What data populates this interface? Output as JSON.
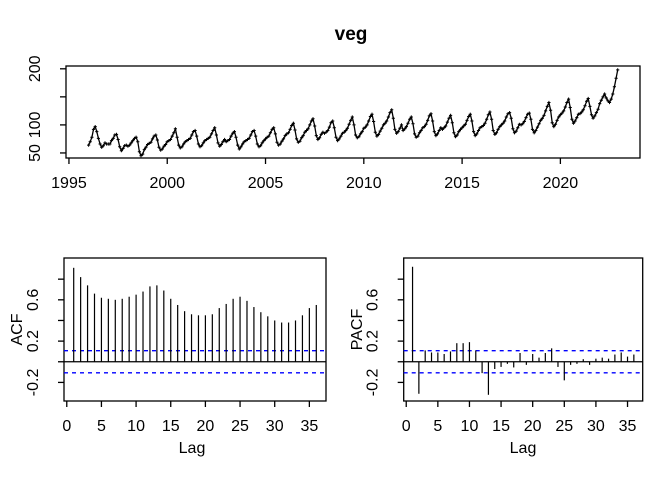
{
  "window": {
    "background": "#ffffff",
    "foreground": "#000000"
  },
  "chart_data": [
    {
      "type": "line",
      "title": "veg",
      "xlabel": "",
      "ylabel": "",
      "x_start_year": 1996,
      "frequency_per_year": 12,
      "xlim": [
        1994.85,
        2024.05
      ],
      "ylim": [
        41,
        205
      ],
      "grid": false,
      "line_color": "#000000",
      "marker": "plus",
      "xticks": [
        {
          "v": 1995,
          "label": "1995"
        },
        {
          "v": 2000,
          "label": "2000"
        },
        {
          "v": 2005,
          "label": "2005"
        },
        {
          "v": 2010,
          "label": "2010"
        },
        {
          "v": 2015,
          "label": "2015"
        },
        {
          "v": 2020,
          "label": "2020"
        }
      ],
      "yticks": [
        {
          "v": 50,
          "label": "50"
        },
        {
          "v": 100,
          "label": "100"
        },
        {
          "v": 150,
          "label": ""
        },
        {
          "v": 200,
          "label": "200"
        }
      ],
      "values": [
        64,
        70,
        78,
        92,
        97,
        88,
        76,
        66,
        60,
        63,
        68,
        66,
        66,
        66,
        72,
        76,
        82,
        83,
        74,
        61,
        54,
        58,
        63,
        64,
        62,
        64,
        68,
        72,
        76,
        78,
        70,
        52,
        45,
        48,
        56,
        60,
        65,
        67,
        69,
        75,
        80,
        82,
        73,
        60,
        55,
        57,
        62,
        65,
        70,
        72,
        74,
        80,
        86,
        93,
        78,
        64,
        59,
        61,
        66,
        70,
        72,
        74,
        76,
        82,
        88,
        90,
        80,
        66,
        61,
        63,
        68,
        72,
        74,
        76,
        78,
        84,
        90,
        95,
        82,
        68,
        62,
        65,
        70,
        74,
        70,
        72,
        74,
        80,
        85,
        88,
        78,
        64,
        57,
        61,
        66,
        70,
        72,
        74,
        76,
        82,
        88,
        90,
        80,
        66,
        61,
        63,
        68,
        72,
        75,
        78,
        80,
        86,
        92,
        95,
        84,
        69,
        64,
        66,
        71,
        75,
        81,
        84,
        86,
        92,
        99,
        103,
        91,
        75,
        69,
        71,
        77,
        81,
        87,
        90,
        93,
        100,
        107,
        111,
        98,
        81,
        74,
        77,
        83,
        87,
        85,
        87,
        90,
        96,
        104,
        107,
        95,
        78,
        72,
        75,
        80,
        85,
        87,
        90,
        94,
        101,
        108,
        114,
        100,
        82,
        77,
        79,
        84,
        88,
        94,
        96,
        100,
        107,
        115,
        119,
        106,
        87,
        80,
        83,
        89,
        94,
        100,
        103,
        107,
        114,
        122,
        127,
        112,
        92,
        85,
        88,
        94,
        100,
        90,
        93,
        97,
        103,
        110,
        114,
        102,
        84,
        78,
        80,
        86,
        90,
        95,
        97,
        101,
        108,
        116,
        120,
        107,
        88,
        81,
        84,
        90,
        95,
        92,
        95,
        98,
        105,
        112,
        117,
        104,
        86,
        79,
        82,
        88,
        92,
        95,
        98,
        101,
        108,
        115,
        119,
        107,
        88,
        81,
        84,
        90,
        95,
        97,
        99,
        103,
        110,
        118,
        123,
        110,
        90,
        83,
        86,
        92,
        97,
        100,
        103,
        107,
        114,
        120,
        122,
        112,
        93,
        86,
        89,
        95,
        101,
        100,
        102,
        106,
        113,
        119,
        121,
        110,
        92,
        86,
        90,
        96,
        102,
        108,
        112,
        117,
        125,
        133,
        140,
        126,
        104,
        97,
        101,
        108,
        114,
        118,
        121,
        125,
        132,
        140,
        146,
        131,
        110,
        103,
        107,
        113,
        119,
        120,
        123,
        127,
        134,
        142,
        147,
        133,
        118,
        112,
        116,
        122,
        128,
        138,
        144,
        150,
        155,
        148,
        143,
        140,
        146,
        155,
        168,
        183,
        198
      ]
    },
    {
      "type": "bar",
      "title": "",
      "xlabel": "Lag",
      "ylabel": "ACF",
      "xlim": [
        -0.4,
        37.4
      ],
      "ylim": [
        -0.38,
        1.005
      ],
      "ci": 0.107,
      "ci_color": "#0000ff",
      "bar_color": "#000000",
      "xticks": [
        {
          "v": 0,
          "label": "0"
        },
        {
          "v": 5,
          "label": "5"
        },
        {
          "v": 10,
          "label": "10"
        },
        {
          "v": 15,
          "label": "15"
        },
        {
          "v": 20,
          "label": "20"
        },
        {
          "v": 25,
          "label": "25"
        },
        {
          "v": 30,
          "label": "30"
        },
        {
          "v": 35,
          "label": "35"
        }
      ],
      "yticks": [
        {
          "v": -0.2,
          "label": "-0.2"
        },
        {
          "v": 0.0,
          "label": ""
        },
        {
          "v": 0.2,
          "label": "0.2"
        },
        {
          "v": 0.4,
          "label": ""
        },
        {
          "v": 0.6,
          "label": "0.6"
        },
        {
          "v": 0.8,
          "label": ""
        }
      ],
      "lag_start": 1,
      "values": [
        0.91,
        0.82,
        0.74,
        0.66,
        0.62,
        0.61,
        0.6,
        0.61,
        0.63,
        0.65,
        0.68,
        0.73,
        0.74,
        0.69,
        0.61,
        0.55,
        0.49,
        0.46,
        0.45,
        0.45,
        0.46,
        0.52,
        0.56,
        0.61,
        0.63,
        0.59,
        0.53,
        0.48,
        0.44,
        0.4,
        0.38,
        0.38,
        0.4,
        0.45,
        0.52,
        0.55
      ]
    },
    {
      "type": "bar",
      "title": "",
      "xlabel": "Lag",
      "ylabel": "PACF",
      "xlim": [
        -0.4,
        37.4
      ],
      "ylim": [
        -0.38,
        1.005
      ],
      "ci": 0.107,
      "ci_color": "#0000ff",
      "bar_color": "#000000",
      "xticks": [
        {
          "v": 0,
          "label": "0"
        },
        {
          "v": 5,
          "label": "5"
        },
        {
          "v": 10,
          "label": "10"
        },
        {
          "v": 15,
          "label": "15"
        },
        {
          "v": 20,
          "label": "20"
        },
        {
          "v": 25,
          "label": "25"
        },
        {
          "v": 30,
          "label": "30"
        },
        {
          "v": 35,
          "label": "35"
        }
      ],
      "yticks": [
        {
          "v": -0.2,
          "label": "-0.2"
        },
        {
          "v": 0.0,
          "label": ""
        },
        {
          "v": 0.2,
          "label": "0.2"
        },
        {
          "v": 0.4,
          "label": ""
        },
        {
          "v": 0.6,
          "label": "0.6"
        },
        {
          "v": 0.8,
          "label": ""
        }
      ],
      "lag_start": 1,
      "values": [
        0.92,
        -0.31,
        0.11,
        0.09,
        0.09,
        0.075,
        0.1,
        0.18,
        0.18,
        0.19,
        0.11,
        -0.11,
        -0.32,
        -0.07,
        -0.05,
        -0.02,
        -0.055,
        0.085,
        -0.03,
        0.075,
        0.04,
        0.085,
        0.13,
        -0.05,
        -0.18,
        -0.03,
        -0.02,
        0.025,
        -0.03,
        0.03,
        0.04,
        0.03,
        0.07,
        0.09,
        0.05,
        0.07
      ]
    }
  ]
}
